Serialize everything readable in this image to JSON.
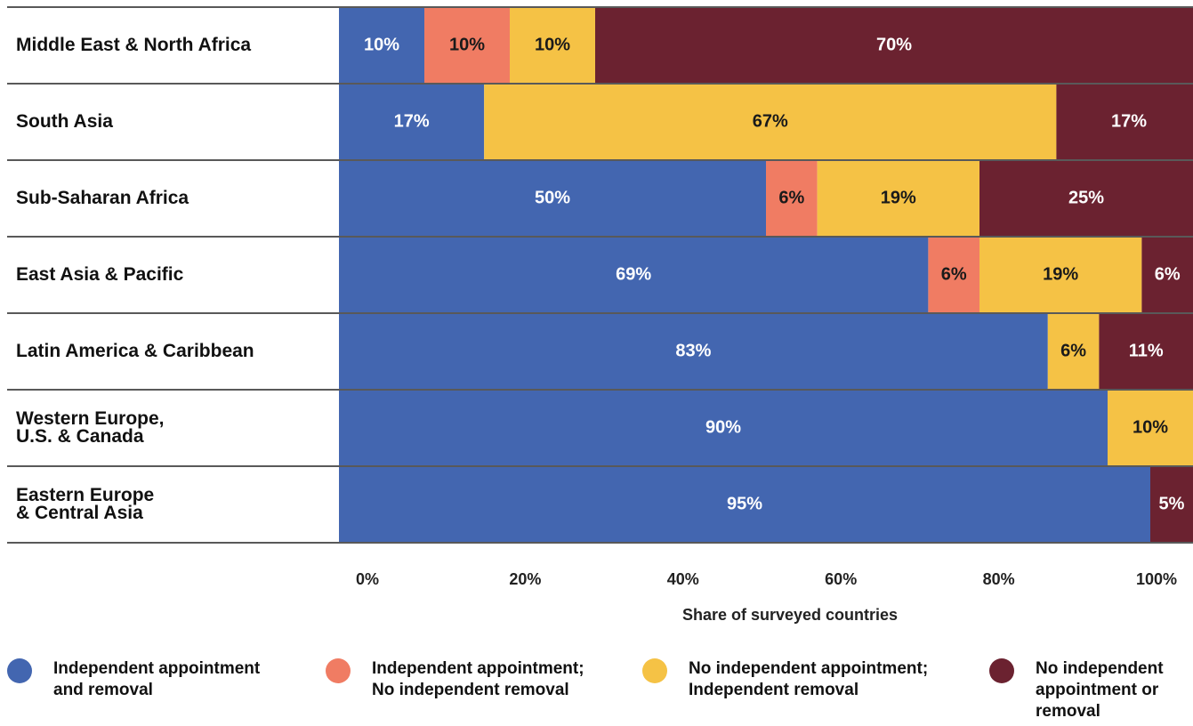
{
  "chart_data": {
    "type": "stacked-barh",
    "categories": [
      "Middle East & North Africa",
      "South Asia",
      "Sub-Saharan Africa",
      "East Asia & Pacific",
      "Latin America & Caribbean",
      "Western Europe,\nU.S. & Canada",
      "Eastern Europe\n& Central Asia"
    ],
    "series": [
      {
        "name": "Independent appointment\nand removal",
        "color": "#4366b0",
        "label_color": "#ffffff",
        "values": [
          10,
          17,
          50,
          69,
          83,
          90,
          95
        ],
        "value_labels": [
          "10%",
          "17%",
          "50%",
          "69%",
          "83%",
          "90%",
          "95%"
        ]
      },
      {
        "name": "Independent appointment;\nNo independent removal",
        "color": "#f07c63",
        "label_color": "#1a1a1a",
        "values": [
          10,
          null,
          6,
          6,
          null,
          null,
          null
        ],
        "value_labels": [
          "10%",
          null,
          "6%",
          "6%",
          null,
          null,
          null
        ]
      },
      {
        "name": "No independent appointment;\nIndependent removal",
        "color": "#f5c245",
        "label_color": "#1a1a1a",
        "values": [
          10,
          67,
          19,
          19,
          6,
          10,
          null
        ],
        "value_labels": [
          "10%",
          "67%",
          "19%",
          "19%",
          "6%",
          "10%",
          null
        ]
      },
      {
        "name": "No independent\nappointment or\nremoval",
        "color": "#6b2230",
        "label_color": "#ffffff",
        "values": [
          70,
          17,
          25,
          6,
          11,
          null,
          5
        ],
        "value_labels": [
          "70%",
          "17%",
          "25%",
          "6%",
          "11%",
          null,
          "5%"
        ]
      }
    ],
    "xlim": [
      0,
      100
    ],
    "xticks": [
      {
        "value": 0,
        "label": "0%"
      },
      {
        "value": 20,
        "label": "20%"
      },
      {
        "value": 40,
        "label": "40%"
      },
      {
        "value": 60,
        "label": "60%"
      },
      {
        "value": 80,
        "label": "80%"
      },
      {
        "value": 100,
        "label": "100%"
      }
    ],
    "xlabel": "Share of surveyed countries"
  }
}
